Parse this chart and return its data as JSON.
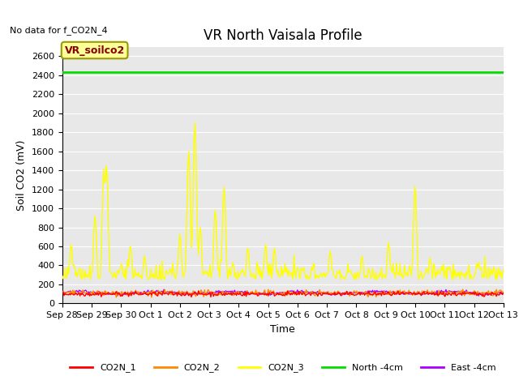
{
  "title": "VR North Vaisala Profile",
  "no_data_text": "No data for f_CO2N_4",
  "xlabel": "Time",
  "ylabel": "Soil CO2 (mV)",
  "ylim": [
    0,
    2700
  ],
  "yticks": [
    0,
    200,
    400,
    600,
    800,
    1000,
    1200,
    1400,
    1600,
    1800,
    2000,
    2200,
    2400,
    2600
  ],
  "bg_color": "#e8e8e8",
  "series": {
    "CO2N_1": {
      "color": "#ff0000",
      "linewidth": 1.0
    },
    "CO2N_2": {
      "color": "#ff8800",
      "linewidth": 1.0
    },
    "CO2N_3": {
      "color": "#ffff00",
      "linewidth": 1.0
    },
    "North_4cm": {
      "color": "#00dd00",
      "linewidth": 2.0
    },
    "East_4cm": {
      "color": "#aa00ff",
      "linewidth": 1.0
    }
  },
  "legend_labels": [
    "CO2N_1",
    "CO2N_2",
    "CO2N_3",
    "North -4cm",
    "East -4cm"
  ],
  "legend_colors": [
    "#ff0000",
    "#ff8800",
    "#ffff00",
    "#00dd00",
    "#aa00ff"
  ],
  "vr_soilco2_box": {
    "text": "VR_soilco2",
    "text_color": "#880000",
    "bg_color": "#ffff99",
    "border_color": "#999900",
    "fontsize": 9
  },
  "north_4cm_value": 2430,
  "num_points": 500,
  "title_fontsize": 12,
  "axis_fontsize": 9,
  "tick_fontsize": 8
}
